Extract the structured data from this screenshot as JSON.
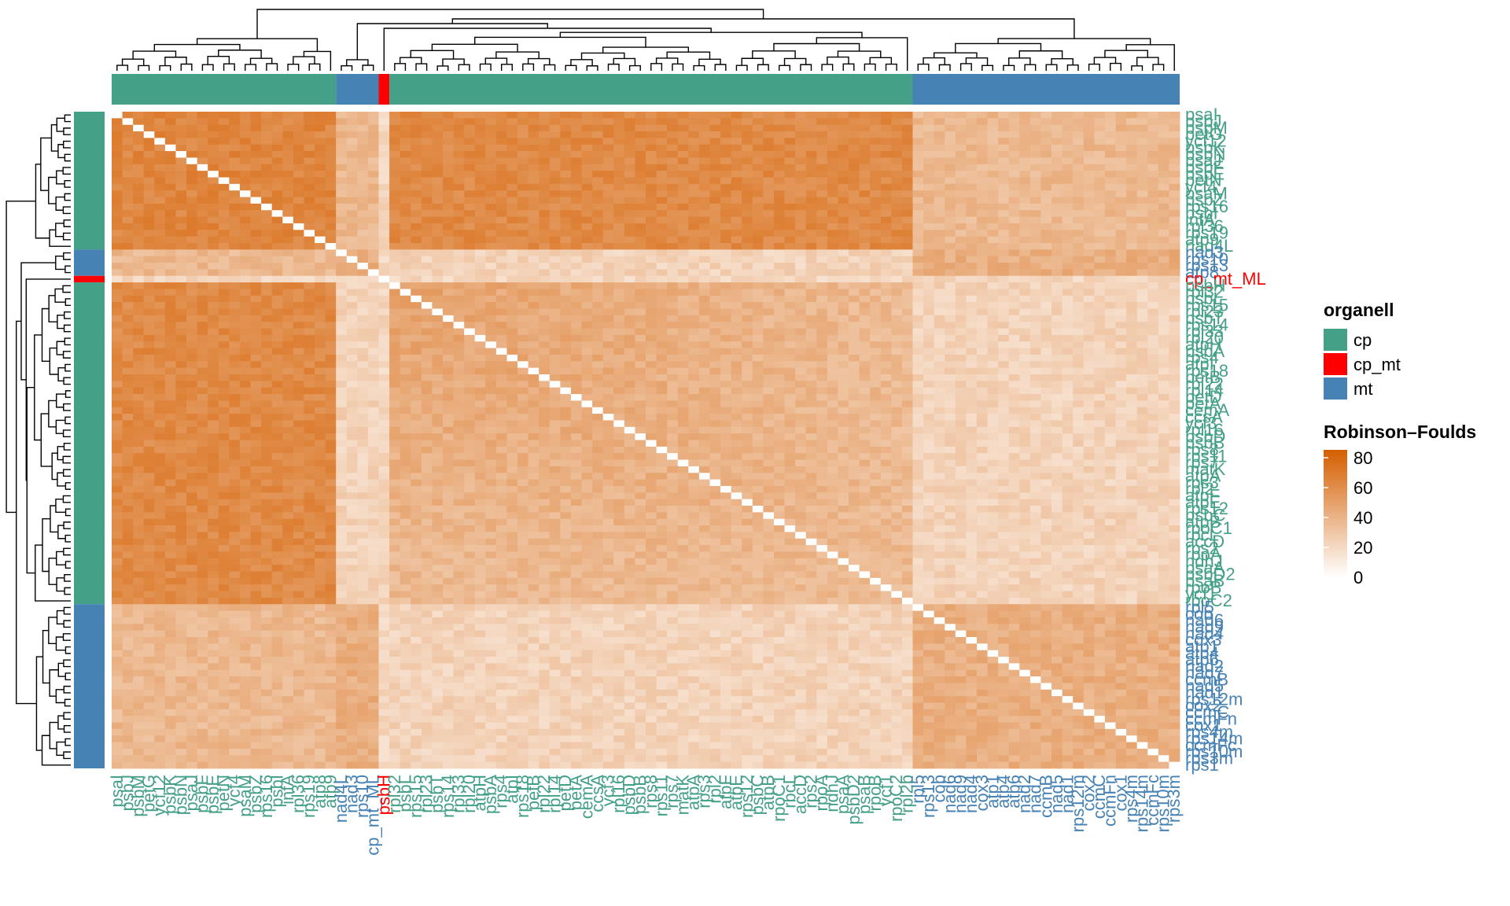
{
  "colors": {
    "cp": "#45A088",
    "cp_mt": "#FF0000",
    "mt": "#4682B4",
    "heat_low": "#FFFFFF",
    "heat_high": "#D45E00"
  },
  "legend": {
    "organell_title": "organell",
    "organell_items": [
      {
        "label": "cp",
        "color_key": "cp"
      },
      {
        "label": "cp_mt",
        "color_key": "cp_mt"
      },
      {
        "label": "mt",
        "color_key": "mt"
      }
    ],
    "scale_title": "Robinson–Foulds",
    "scale_ticks": [
      "80",
      "60",
      "40",
      "20",
      "0"
    ]
  },
  "chart_data": {
    "type": "heatmap",
    "title": "",
    "value_range": [
      0,
      80
    ],
    "groups_in_order": [
      {
        "group": "cp",
        "count": 21
      },
      {
        "group": "mt",
        "count": 4
      },
      {
        "group": "cp_mt",
        "count": 1
      },
      {
        "group": "cp",
        "count": 49
      },
      {
        "group": "mt",
        "count": 25
      }
    ],
    "block_means": {
      "cp_cp_strong": 58,
      "cp_cp": 46,
      "cp_mt": 22,
      "mt_mt": 40,
      "mt_cp_first": 35,
      "diag": 0
    },
    "col_labels": [
      "psaI",
      "psbJ",
      "psbM",
      "petG",
      "ycf12",
      "psbK",
      "psbN",
      "psaJ",
      "psbF",
      "psbE",
      "petN",
      "ycf4",
      "psaM",
      "psbZ",
      "rps16",
      "psbI",
      "infA",
      "rpl36",
      "rps19",
      "atp8",
      "atp9",
      "nad4L",
      "nad3",
      "rps10",
      "cp_mt_ML",
      "psbH",
      "rpl32",
      "psbL",
      "rps15",
      "rpl23",
      "psbT",
      "rps14",
      "rpl33",
      "rpl20",
      "atpH",
      "psbA",
      "rps4",
      "atpI",
      "rps18",
      "petB",
      "rpl22",
      "rpl14",
      "petD",
      "petA",
      "cemA",
      "ccsA",
      "ycf3",
      "rpl16",
      "psbD",
      "psbB",
      "rps8",
      "rps11",
      "rps7",
      "matK",
      "atpA",
      "rps3",
      "rpl2",
      "atpF",
      "atpE",
      "rps12",
      "psbC",
      "atpB",
      "rpoC1",
      "rbcL",
      "accD",
      "rps2",
      "rpoA",
      "ndhJ",
      "psaA",
      "psbD2",
      "psaB",
      "rpoB",
      "ycf1",
      "rpoC2",
      "rpl2b",
      "rpl5",
      "rps13",
      "cob",
      "nad6",
      "nad9",
      "nad4",
      "cox3",
      "atp1",
      "atp4",
      "atp6",
      "nad2",
      "nad7",
      "ccmB",
      "nad5",
      "nad1",
      "rps12m",
      "cox2",
      "ccmC",
      "ccmFn",
      "cox1",
      "rps4m",
      "rps14m",
      "ccmFc",
      "rps10m",
      "rps3m"
    ],
    "row_labels_visible": [
      "psaI",
      "psbJ",
      "psbM",
      "petG",
      "ycf12",
      "psbK",
      "psbN",
      "psaJ",
      "psbF",
      "psbE",
      "petN",
      "ycf4",
      "psaM",
      "psbZ",
      "rps16",
      "psbI",
      "infA",
      "rpl36",
      "rps19",
      "atp9",
      "nad4L",
      "nad3",
      "rps10",
      "rps13",
      "atp8",
      "cp_mt_ML",
      "psbH",
      "rpl32",
      "psbL",
      "rps15",
      "rpl23",
      "psbT",
      "rps14",
      "rpl33",
      "rpl20",
      "atpH",
      "psbA",
      "rps4",
      "atpI",
      "rps18",
      "petB",
      "rpl22",
      "rpl14",
      "petD",
      "petA",
      "cemA",
      "ccsA",
      "ycf3",
      "rpl16",
      "psbD",
      "psbB",
      "rps8",
      "rps11",
      "rps7",
      "matK",
      "atpA",
      "rps3",
      "rpl2",
      "atpF",
      "atpE",
      "rps12",
      "psbC",
      "atpB",
      "rpoC1",
      "rbcL",
      "accD",
      "rps2",
      "rpoA",
      "ndhJ",
      "psaA",
      "psbD2",
      "psaB",
      "rpoB",
      "ycf1",
      "rpoC2",
      "rpl5",
      "cob",
      "nad6",
      "nad9",
      "nad4",
      "cox3",
      "atp1",
      "atp4",
      "atp6",
      "nad2",
      "nad7",
      "ccmB",
      "nad5",
      "nad1",
      "rps12m",
      "cox2",
      "ccmC",
      "ccmFn",
      "cox1",
      "rps4m",
      "rps14m",
      "ccmFc",
      "rps10m",
      "rps3m",
      "rps1"
    ]
  }
}
